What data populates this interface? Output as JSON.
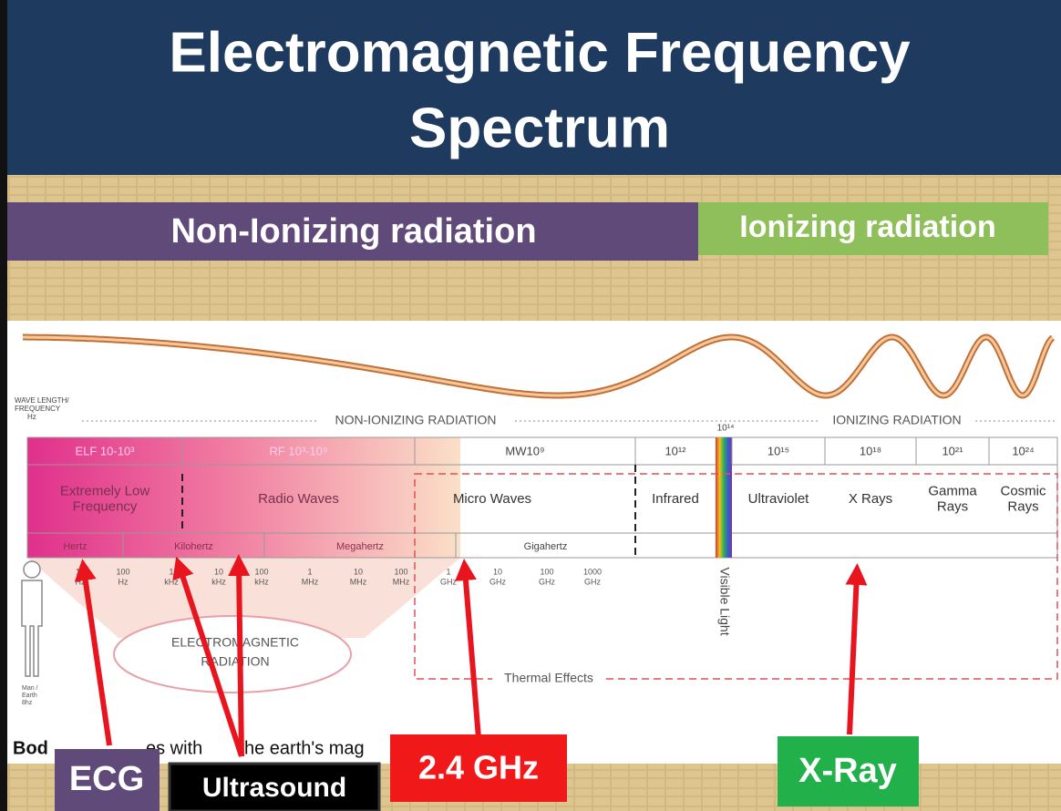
{
  "header": {
    "title_lines": [
      "Electromagnetic Frequency",
      "Spectrum"
    ]
  },
  "bands": {
    "non_ionizing": "Non-Ionizing radiation",
    "ionizing": "Ionizing radiation"
  },
  "diagram": {
    "axis_label": [
      "WAVE LENGTH/",
      "FREQUENCY",
      "Hz"
    ],
    "non_ionizing": "NON-IONIZING RADIATION",
    "ionizing": "IONIZING RADIATION",
    "visible_top": "10¹⁴",
    "headers": [
      "ELF 10-10³",
      "RF 10³-10⁹",
      "MW10⁹",
      "10¹²",
      "10¹⁵",
      "10¹⁸",
      "10²¹",
      "10²⁴"
    ],
    "regions": [
      [
        "Extremely Low",
        "Frequency"
      ],
      [
        "Radio Waves"
      ],
      [
        "Micro Waves"
      ],
      [
        "Infrared"
      ],
      [
        "Ultraviolet"
      ],
      [
        "X Rays"
      ],
      [
        "Gamma",
        "Rays"
      ],
      [
        "Cosmic",
        "Rays"
      ]
    ],
    "units": [
      "Hertz",
      "Kilohertz",
      "Megahertz",
      "Gigahertz"
    ],
    "ticks": [
      {
        "number": "10",
        "unit": "Hz"
      },
      {
        "number": "100",
        "unit": "Hz"
      },
      {
        "number": "1",
        "unit": "kHz"
      },
      {
        "number": "10",
        "unit": "kHz"
      },
      {
        "number": "100",
        "unit": "kHz"
      },
      {
        "number": "1",
        "unit": "MHz"
      },
      {
        "number": "10",
        "unit": "MHz"
      },
      {
        "number": "100",
        "unit": "MHz"
      },
      {
        "number": "1",
        "unit": "GHz"
      },
      {
        "number": "10",
        "unit": "GHz"
      },
      {
        "number": "100",
        "unit": "GHz"
      },
      {
        "number": "1000",
        "unit": "GHz"
      }
    ],
    "visible_light": "Visible Light",
    "em_radiation": [
      "ELECTROMAGNETIC",
      "RADIATION"
    ],
    "man": [
      "Man /",
      "Earth",
      "8hz"
    ],
    "thermal": "Thermal Effects",
    "caption_parts": [
      "Bod",
      "es with",
      "he earth's mag"
    ]
  },
  "callouts": [
    "ECG",
    "Ultrasound",
    "2.4 GHz",
    "X-Ray"
  ]
}
